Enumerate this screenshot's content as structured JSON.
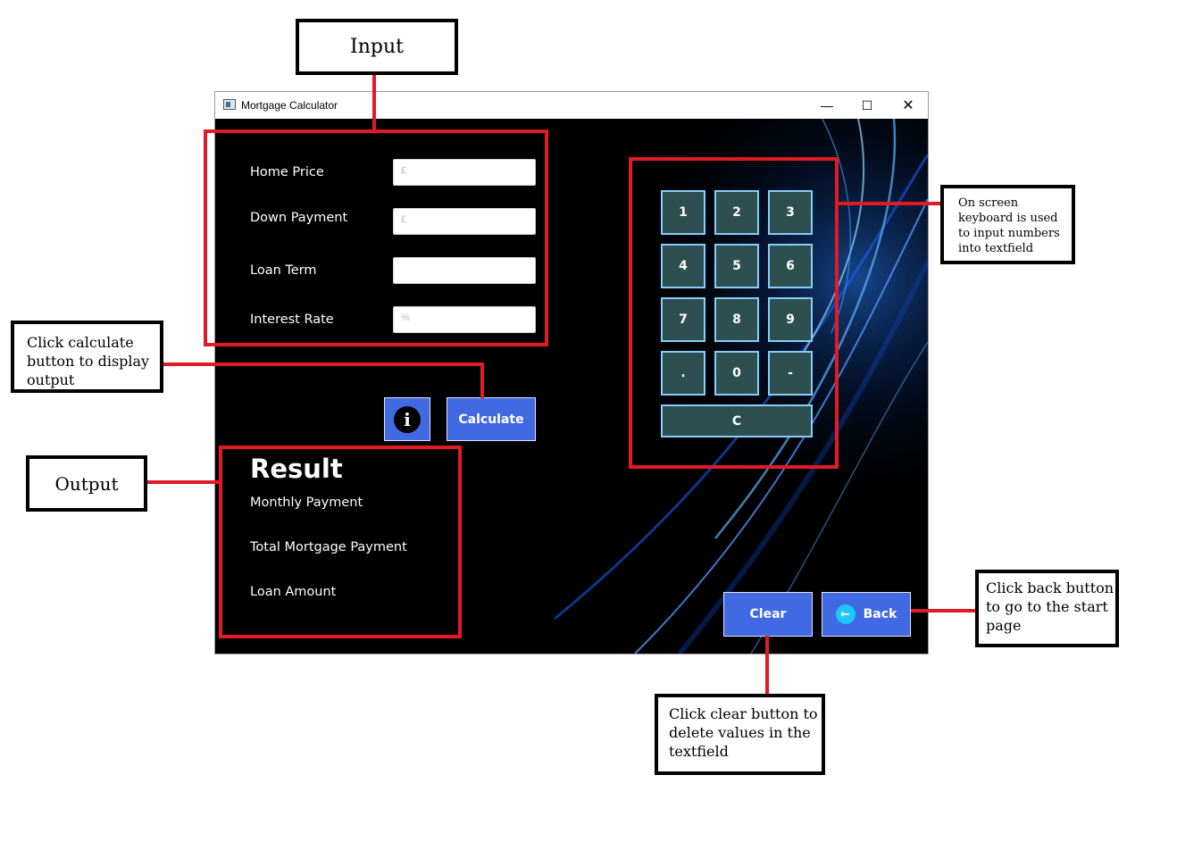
{
  "window": {
    "title": "Mortgage Calculator",
    "controls": {
      "minimize": "—",
      "maximize": "☐",
      "close": "✕"
    }
  },
  "inputs": {
    "home_price": {
      "label": "Home Price",
      "placeholder": "£"
    },
    "down_payment": {
      "label": "Down Payment",
      "placeholder": "£"
    },
    "loan_term": {
      "label": "Loan Term",
      "placeholder": ""
    },
    "interest_rate": {
      "label": "Interest Rate",
      "placeholder": "%"
    }
  },
  "buttons": {
    "info": "i",
    "calculate": "Calculate",
    "clear": "Clear",
    "back": "Back"
  },
  "result": {
    "title": "Result",
    "monthly_payment": "Monthly Payment",
    "total_mortgage_payment": "Total Mortgage Payment",
    "loan_amount": "Loan Amount"
  },
  "keypad": {
    "keys": [
      "1",
      "2",
      "3",
      "4",
      "5",
      "6",
      "7",
      "8",
      "9",
      ".",
      "0",
      "-"
    ],
    "clear_key": "C"
  },
  "annotations": {
    "input": "Input",
    "output": "Output",
    "calculate_note": "Click calculate button to display output",
    "keyboard_note": "On screen keyboard is used to input numbers into textfield",
    "back_note": "Click back button to go to the start page",
    "clear_note": "Click clear button to delete values in the textfield"
  },
  "colors": {
    "button_blue": "#4169e1",
    "key_fill": "#2e4f4f",
    "key_border": "#87cefa",
    "annotation_red": "#e01b24"
  }
}
